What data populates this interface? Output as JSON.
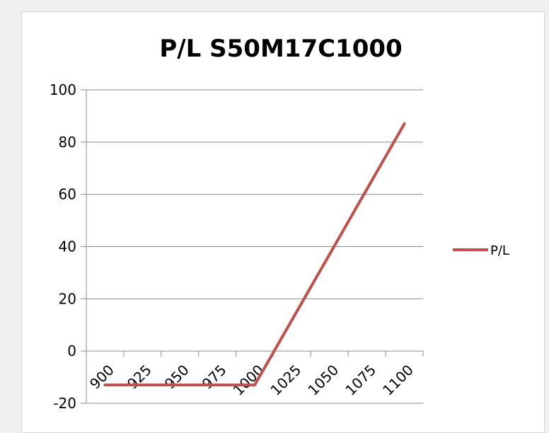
{
  "chart_data": {
    "type": "line",
    "title": "P/L S50M17C1000",
    "xlabel": "",
    "ylabel": "",
    "categories": [
      "900",
      "925",
      "950",
      "975",
      "1000",
      "1025",
      "1050",
      "1075",
      "1100"
    ],
    "series": [
      {
        "name": "P/L",
        "color": "#c0504d",
        "values": [
          -13,
          -13,
          -13,
          -13,
          -13,
          12,
          37,
          62,
          87
        ]
      }
    ],
    "ylim": [
      -20,
      100
    ],
    "yticks": [
      -20,
      0,
      20,
      40,
      60,
      80,
      100
    ],
    "grid": "horizontal",
    "legend_position": "right"
  }
}
